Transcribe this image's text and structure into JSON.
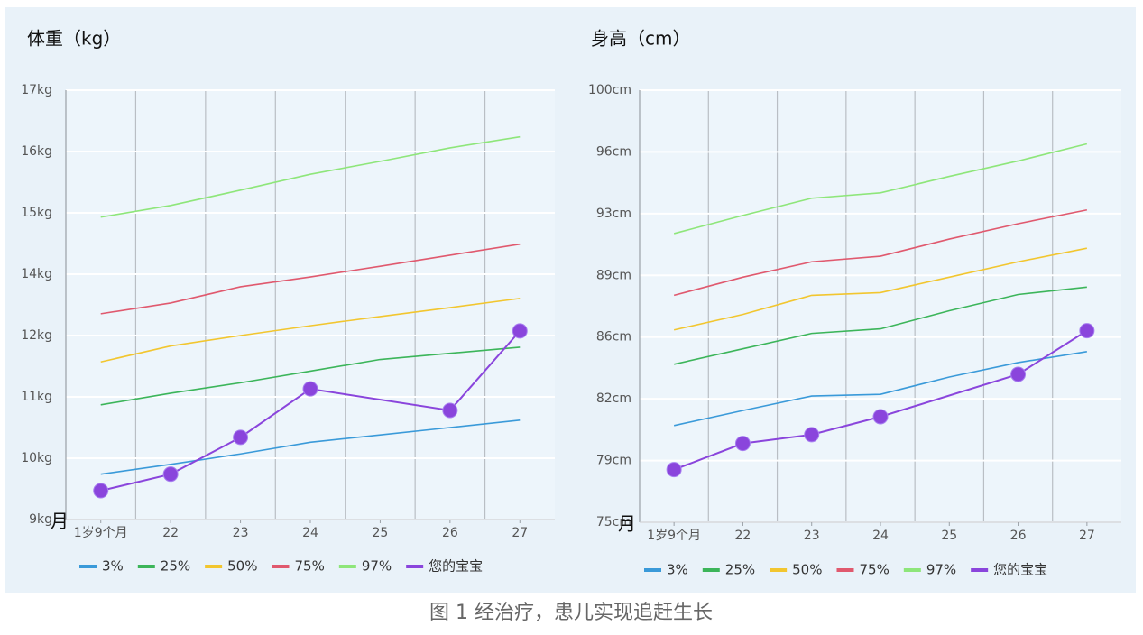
{
  "chart_data": [
    {
      "type": "line",
      "title": "体重（kg）",
      "x_label": "月",
      "x": [
        21,
        22,
        23,
        24,
        25,
        26,
        27
      ],
      "xlim": [
        20.5,
        27.5
      ],
      "xticks": [
        {
          "value": 21,
          "label": "1岁9个月"
        },
        22,
        23,
        24,
        25,
        26,
        27
      ],
      "ylim": [
        9,
        17
      ],
      "yticks": [
        {
          "value": 9,
          "label": "9kg"
        },
        {
          "value": 10,
          "label": "10kg"
        },
        {
          "value": 11,
          "label": "11kg"
        },
        {
          "value": 12,
          "label": "12kg"
        },
        {
          "value": 14,
          "label": "14kg"
        },
        {
          "value": 15,
          "label": "15kg"
        },
        {
          "value": 16,
          "label": "16kg"
        },
        {
          "value": 17,
          "label": "17kg"
        }
      ],
      "grid": true,
      "series": [
        {
          "name": "3%",
          "color": "#3a9ad9",
          "values": [
            9.74,
            9.9,
            10.07,
            10.26,
            10.38,
            10.5,
            10.62
          ]
        },
        {
          "name": "25%",
          "color": "#3cb55a",
          "values": [
            10.87,
            11.06,
            11.23,
            11.42,
            11.61,
            11.71,
            11.81
          ]
        },
        {
          "name": "50%",
          "color": "#f2c62f",
          "values": [
            11.57,
            11.83,
            12.0,
            12.32,
            12.62,
            12.91,
            13.21
          ]
        },
        {
          "name": "75%",
          "color": "#e0596e",
          "values": [
            12.71,
            13.06,
            13.59,
            13.91,
            14.13,
            14.31,
            14.49
          ]
        },
        {
          "name": "97%",
          "color": "#8ee67a",
          "values": [
            14.93,
            15.12,
            15.37,
            15.63,
            15.84,
            16.06,
            16.24
          ]
        },
        {
          "name": "您的宝宝",
          "color": "#8a45dc",
          "x": [
            21,
            22,
            23,
            24,
            26,
            27
          ],
          "values": [
            9.47,
            9.74,
            10.34,
            11.13,
            10.78,
            12.15
          ],
          "markers": true
        }
      ]
    },
    {
      "type": "line",
      "title": "身高（cm）",
      "x_label": "月",
      "x": [
        21,
        22,
        23,
        24,
        25,
        26,
        27
      ],
      "xlim": [
        20.5,
        27.5
      ],
      "xticks": [
        {
          "value": 21,
          "label": "1岁9个月"
        },
        22,
        23,
        24,
        25,
        26,
        27
      ],
      "ylim": [
        75,
        100
      ],
      "yticks": [
        {
          "value": 75,
          "label": "75cm"
        },
        {
          "value": 79,
          "label": "79cm"
        },
        {
          "value": 82,
          "label": "82cm"
        },
        {
          "value": 86,
          "label": "86cm"
        },
        {
          "value": 89,
          "label": "89cm"
        },
        {
          "value": 93,
          "label": "93cm"
        },
        {
          "value": 96,
          "label": "96cm"
        },
        {
          "value": 100,
          "label": "100cm"
        }
      ],
      "grid": true,
      "series": [
        {
          "name": "3%",
          "color": "#3a9ad9",
          "values": [
            80.7,
            81.43,
            82.18,
            82.29,
            83.41,
            84.35,
            85.06
          ]
        },
        {
          "name": "25%",
          "color": "#3cb55a",
          "values": [
            84.24,
            85.24,
            86.18,
            86.4,
            87.28,
            88.07,
            88.43
          ]
        },
        {
          "name": "50%",
          "color": "#f2c62f",
          "values": [
            86.35,
            87.1,
            88.03,
            88.16,
            88.91,
            89.88,
            90.76
          ]
        },
        {
          "name": "75%",
          "color": "#e0596e",
          "values": [
            88.03,
            88.91,
            89.88,
            90.24,
            91.35,
            92.35,
            93.18
          ]
        },
        {
          "name": "97%",
          "color": "#8ee67a",
          "values": [
            91.71,
            92.88,
            93.75,
            94.01,
            94.81,
            95.56,
            96.52
          ]
        },
        {
          "name": "您的宝宝",
          "color": "#8a45dc",
          "x": [
            21,
            22,
            23,
            24,
            26,
            27
          ],
          "values": [
            78.41,
            79.83,
            80.26,
            81.13,
            83.59,
            86.31
          ],
          "markers": true
        }
      ]
    }
  ],
  "caption": "图 1 经治疗，患儿实现追赶生长"
}
